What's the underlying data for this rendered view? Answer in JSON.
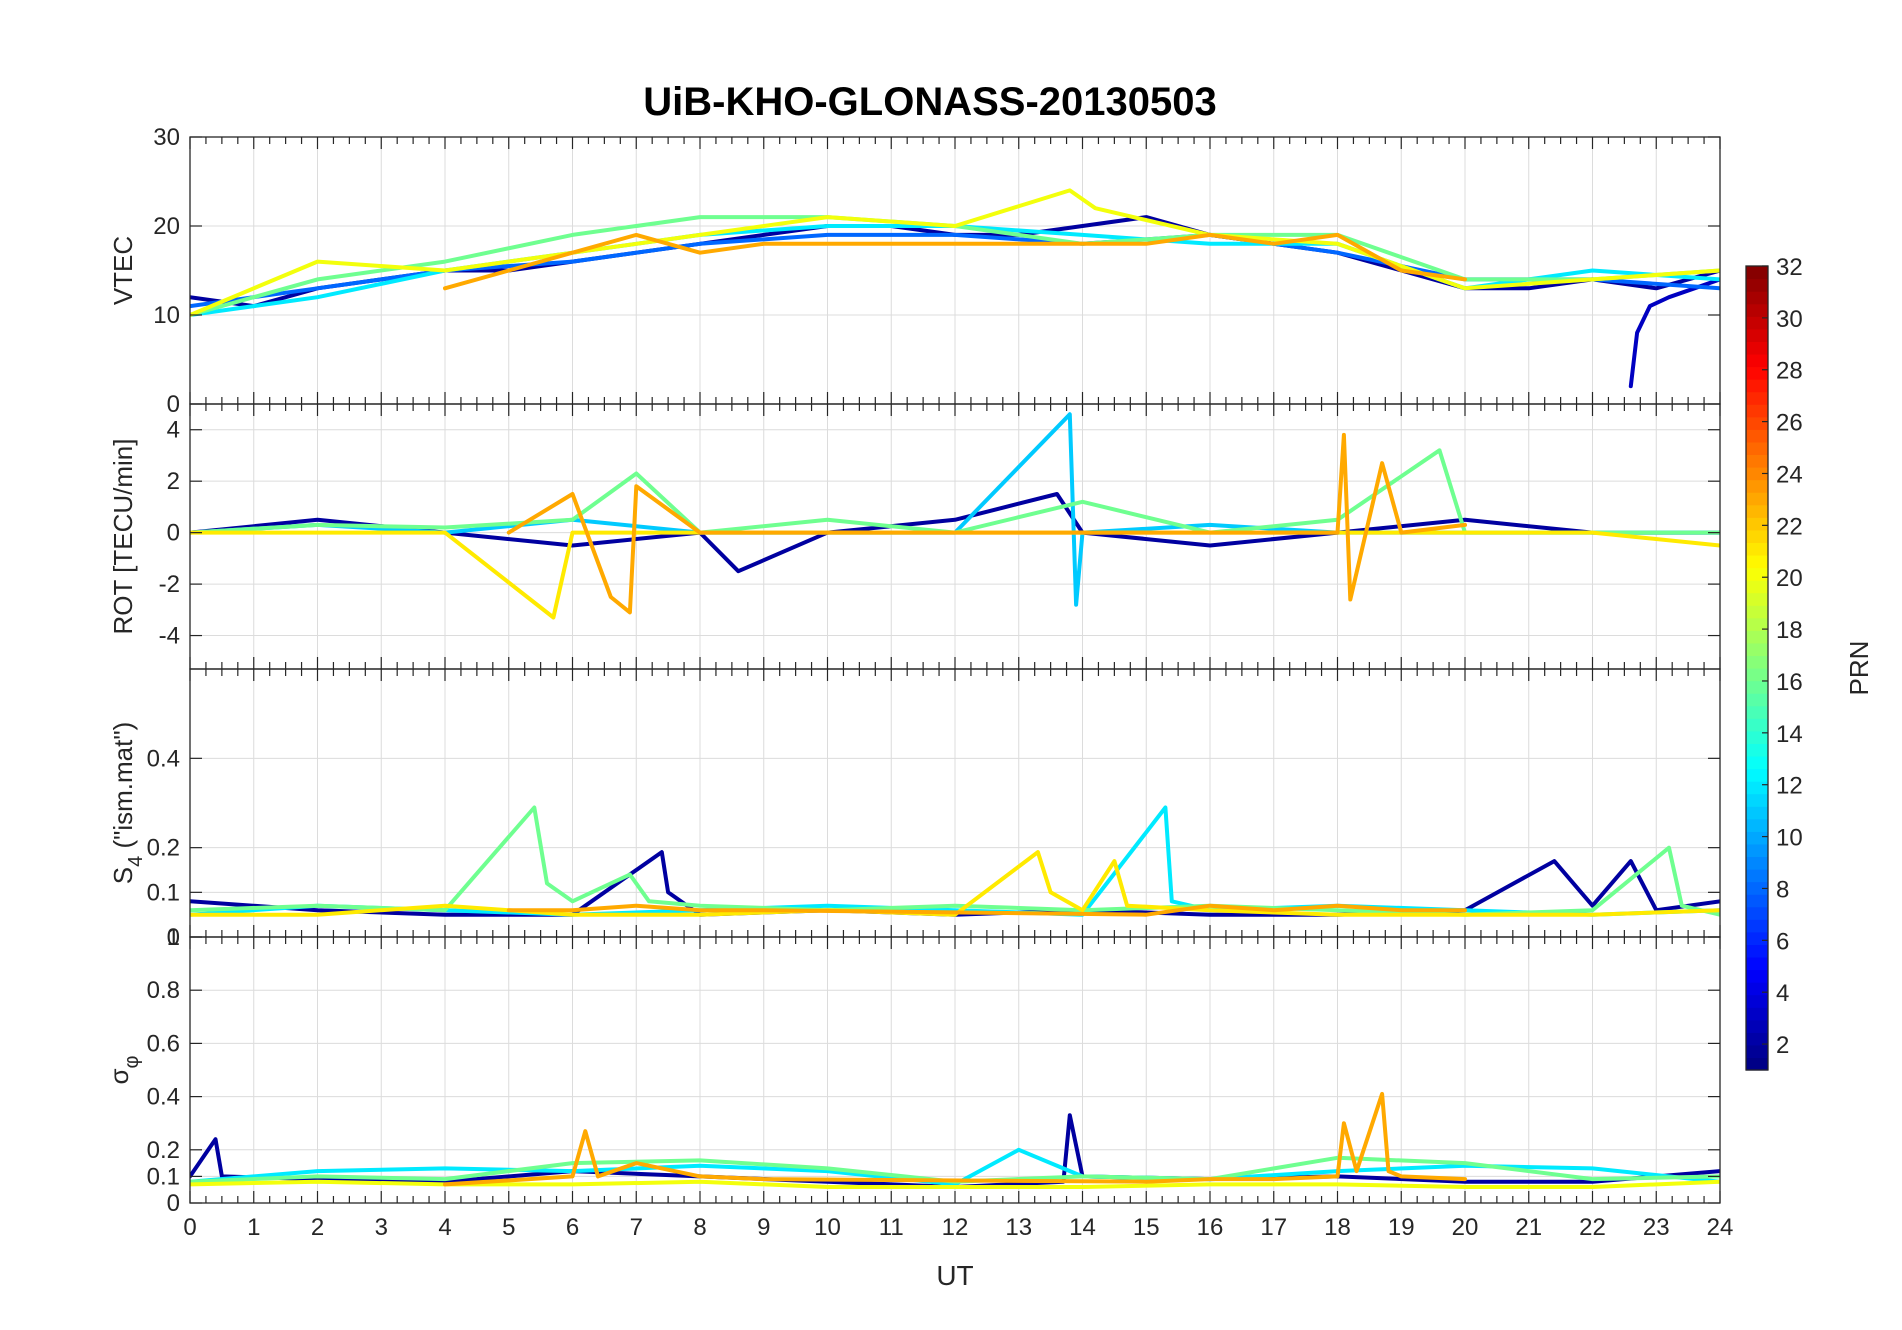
{
  "chart_data": {
    "type": "line",
    "title": "UiB-KHO-GLONASS-20130503",
    "xlabel": "UT",
    "xlim": [
      0,
      24
    ],
    "xticks": [
      "0",
      "1",
      "2",
      "3",
      "4",
      "5",
      "6",
      "7",
      "8",
      "9",
      "10",
      "11",
      "12",
      "13",
      "14",
      "15",
      "16",
      "17",
      "18",
      "19",
      "20",
      "21",
      "22",
      "23",
      "24"
    ],
    "grid": true,
    "colorbar": {
      "label": "PRN",
      "colormap": "jet",
      "range": [
        1,
        32
      ],
      "ticks": [
        "2",
        "4",
        "6",
        "8",
        "10",
        "12",
        "14",
        "16",
        "18",
        "20",
        "22",
        "24",
        "26",
        "28",
        "30",
        "32"
      ],
      "placement": "right"
    },
    "panels": [
      {
        "name": "vtec",
        "ylabel": "VTEC",
        "ylim": [
          0,
          30
        ],
        "yticks": [
          0,
          10,
          20,
          30
        ],
        "ytick_labels": [
          "0",
          "10",
          "20",
          "30"
        ],
        "series": [
          {
            "prn": 2,
            "x": [
              0,
              1,
              2,
              3,
              4,
              5,
              6,
              7,
              8,
              9,
              10,
              11,
              12,
              13,
              14,
              15,
              16,
              17,
              18,
              19,
              20,
              21,
              22,
              23,
              24
            ],
            "values": [
              12,
              11,
              13,
              14,
              15,
              15,
              16,
              17,
              18,
              19,
              20,
              20,
              19,
              19,
              20,
              21,
              19,
              18,
              17,
              15,
              13,
              13,
              14,
              13,
              15
            ]
          },
          {
            "prn": 3,
            "x": [
              22.6,
              22.7,
              22.9,
              23.2,
              23.6,
              24
            ],
            "values": [
              2,
              8,
              11,
              12,
              13,
              14
            ]
          },
          {
            "prn": 8,
            "x": [
              0,
              2,
              4,
              6,
              8,
              10,
              12,
              14,
              16,
              18,
              20,
              22,
              24
            ],
            "values": [
              11,
              13,
              15,
              16,
              18,
              19,
              19,
              18,
              19,
              17,
              14,
              14,
              13
            ]
          },
          {
            "prn": 12,
            "x": [
              0,
              2,
              4,
              6,
              8,
              10,
              12,
              14,
              16,
              18,
              20,
              22,
              24
            ],
            "values": [
              10,
              12,
              15,
              17,
              19,
              20,
              20,
              19,
              18,
              18,
              13,
              15,
              14
            ]
          },
          {
            "prn": 16,
            "x": [
              0,
              2,
              4,
              6,
              8,
              10,
              12,
              14,
              16,
              18,
              20,
              22,
              24
            ],
            "values": [
              10,
              14,
              16,
              19,
              21,
              21,
              20,
              18,
              19,
              19,
              14,
              14,
              15
            ]
          },
          {
            "prn": 20,
            "x": [
              0,
              2,
              4,
              6,
              8,
              10,
              12,
              13.8,
              14.2,
              16,
              18,
              20,
              22,
              24
            ],
            "values": [
              10,
              16,
              15,
              17,
              19,
              21,
              20,
              24,
              22,
              19,
              18,
              13,
              14,
              15
            ]
          },
          {
            "prn": 23,
            "x": [
              4,
              5,
              6,
              7,
              8,
              9,
              15,
              16,
              17,
              18,
              19,
              20
            ],
            "values": [
              13,
              15,
              17,
              19,
              17,
              18,
              18,
              19,
              18,
              19,
              15,
              14
            ]
          }
        ]
      },
      {
        "name": "rot",
        "ylabel": "ROT [TECU/min]",
        "ylim": [
          -5.3,
          5
        ],
        "yticks": [
          -4,
          -2,
          0,
          2,
          4
        ],
        "ytick_labels": [
          "-4",
          "-2",
          "0",
          "2",
          "4"
        ],
        "series": [
          {
            "prn": 2,
            "x": [
              0,
              2,
              4,
              6,
              8,
              8.6,
              10,
              12,
              13.6,
              14,
              16,
              18,
              20,
              22,
              24
            ],
            "values": [
              0,
              0.5,
              0,
              -0.5,
              0,
              -1.5,
              0,
              0.5,
              1.5,
              0,
              -0.5,
              0,
              0.5,
              0,
              0
            ]
          },
          {
            "prn": 11,
            "x": [
              0,
              2,
              4,
              6,
              8,
              10,
              12,
              13.8,
              13.9,
              14,
              16,
              18,
              20,
              22,
              24
            ],
            "values": [
              0,
              0.3,
              0,
              0.5,
              0,
              0,
              0,
              4.6,
              -2.8,
              0,
              0.3,
              0,
              0,
              0,
              0
            ]
          },
          {
            "prn": 16,
            "x": [
              0,
              2,
              4,
              6,
              7,
              8,
              10,
              12,
              14,
              16,
              18,
              19.6,
              20,
              22,
              24
            ],
            "values": [
              0,
              0.3,
              0.2,
              0.5,
              2.3,
              0,
              0.5,
              0,
              1.2,
              0,
              0.5,
              3.2,
              0,
              0,
              0
            ]
          },
          {
            "prn": 21,
            "x": [
              0,
              2,
              4,
              5.7,
              6,
              8,
              10,
              12,
              14,
              16,
              18,
              20,
              22,
              24
            ],
            "values": [
              0,
              0,
              0,
              -3.3,
              0,
              0,
              0,
              0,
              0,
              0,
              0,
              0,
              0,
              -0.5
            ]
          },
          {
            "prn": 23,
            "x": [
              5,
              6,
              6.6,
              6.9,
              7,
              8,
              9,
              15,
              16,
              17,
              18,
              18.1,
              18.2,
              18.7,
              19,
              20
            ],
            "values": [
              0,
              1.5,
              -2.5,
              -3.1,
              1.8,
              0,
              0,
              0,
              0,
              0,
              0,
              3.8,
              -2.6,
              2.7,
              0,
              0.3
            ]
          }
        ]
      },
      {
        "name": "s4",
        "ylabel": "S4 (\"ism.mat\")",
        "ylim": [
          0,
          0.6
        ],
        "yticks": [
          0,
          0.1,
          0.2,
          0.4
        ],
        "ytick_labels": [
          "0",
          "0.1",
          "0.2",
          "0.4"
        ],
        "ylabel_main": "S",
        "ylabel_sub": "4",
        "ylabel_rest": " (\"ism.mat\")",
        "series": [
          {
            "prn": 2,
            "x": [
              0,
              2,
              4,
              6,
              7.4,
              7.5,
              8,
              10,
              12,
              14,
              16,
              18,
              20,
              21.4,
              22,
              22.6,
              23,
              24
            ],
            "values": [
              0.08,
              0.06,
              0.05,
              0.05,
              0.19,
              0.1,
              0.05,
              0.06,
              0.05,
              0.06,
              0.05,
              0.05,
              0.06,
              0.17,
              0.07,
              0.17,
              0.06,
              0.08
            ]
          },
          {
            "prn": 12,
            "x": [
              0,
              2,
              4,
              6,
              8,
              10,
              12,
              14,
              15.3,
              15.4,
              16,
              18,
              20,
              22,
              24
            ],
            "values": [
              0.05,
              0.07,
              0.06,
              0.05,
              0.06,
              0.07,
              0.06,
              0.05,
              0.29,
              0.08,
              0.06,
              0.07,
              0.06,
              0.05,
              0.06
            ]
          },
          {
            "prn": 16,
            "x": [
              0,
              2,
              4,
              5.4,
              5.6,
              6,
              6.9,
              7.2,
              8,
              10,
              12,
              14,
              16,
              18,
              20,
              22,
              23.2,
              23.4,
              24
            ],
            "values": [
              0.06,
              0.07,
              0.06,
              0.29,
              0.12,
              0.08,
              0.14,
              0.08,
              0.07,
              0.06,
              0.07,
              0.06,
              0.07,
              0.06,
              0.05,
              0.06,
              0.2,
              0.07,
              0.05
            ]
          },
          {
            "prn": 21,
            "x": [
              0,
              2,
              4,
              6,
              8,
              10,
              12,
              13.3,
              13.5,
              14,
              14.5,
              14.7,
              16,
              18,
              20,
              22,
              24
            ],
            "values": [
              0.05,
              0.05,
              0.07,
              0.05,
              0.05,
              0.06,
              0.05,
              0.19,
              0.1,
              0.06,
              0.17,
              0.07,
              0.06,
              0.05,
              0.05,
              0.05,
              0.06
            ]
          },
          {
            "prn": 23,
            "x": [
              5,
              6,
              7,
              8,
              9,
              15,
              16,
              17,
              18,
              19,
              20
            ],
            "values": [
              0.06,
              0.06,
              0.07,
              0.06,
              0.06,
              0.05,
              0.07,
              0.06,
              0.07,
              0.06,
              0.06
            ]
          }
        ]
      },
      {
        "name": "sigma_phi",
        "ylabel": "σφ",
        "ylim": [
          0,
          1
        ],
        "yticks": [
          0,
          0.1,
          0.2,
          0.4,
          0.6,
          0.8,
          1
        ],
        "ytick_labels": [
          "0",
          "0.1",
          "0.2",
          "0.4",
          "0.6",
          "0.8",
          "1"
        ],
        "ylabel_main": "σ",
        "ylabel_sub": "φ",
        "series": [
          {
            "prn": 2,
            "x": [
              0,
              0.4,
              0.5,
              2,
              4,
              6,
              8,
              10,
              12,
              13.7,
              13.8,
              14,
              16,
              18,
              20,
              22,
              24
            ],
            "values": [
              0.1,
              0.24,
              0.1,
              0.09,
              0.08,
              0.12,
              0.1,
              0.08,
              0.06,
              0.08,
              0.33,
              0.1,
              0.09,
              0.1,
              0.08,
              0.08,
              0.12
            ]
          },
          {
            "prn": 12,
            "x": [
              0,
              2,
              4,
              6,
              8,
              10,
              12,
              13,
              14,
              16,
              18,
              20,
              22,
              24
            ],
            "values": [
              0.08,
              0.12,
              0.13,
              0.12,
              0.14,
              0.12,
              0.07,
              0.2,
              0.1,
              0.09,
              0.12,
              0.14,
              0.13,
              0.08
            ]
          },
          {
            "prn": 16,
            "x": [
              0,
              2,
              4,
              6,
              8,
              10,
              12,
              14,
              16,
              18,
              20,
              22,
              24
            ],
            "values": [
              0.08,
              0.1,
              0.09,
              0.15,
              0.16,
              0.13,
              0.08,
              0.1,
              0.09,
              0.17,
              0.15,
              0.09,
              0.1
            ]
          },
          {
            "prn": 20,
            "x": [
              0,
              2,
              4,
              6,
              8,
              10,
              12,
              14,
              16,
              18,
              20,
              22,
              24
            ],
            "values": [
              0.07,
              0.08,
              0.07,
              0.07,
              0.08,
              0.06,
              0.06,
              0.06,
              0.07,
              0.07,
              0.06,
              0.06,
              0.08
            ]
          },
          {
            "prn": 23,
            "x": [
              4,
              6,
              6.2,
              6.4,
              7,
              8,
              9,
              15,
              16,
              17,
              18,
              18.1,
              18.3,
              18.7,
              18.8,
              19,
              20
            ],
            "values": [
              0.07,
              0.1,
              0.27,
              0.1,
              0.15,
              0.1,
              0.09,
              0.08,
              0.09,
              0.09,
              0.1,
              0.3,
              0.12,
              0.41,
              0.12,
              0.1,
              0.09
            ]
          }
        ]
      }
    ]
  }
}
